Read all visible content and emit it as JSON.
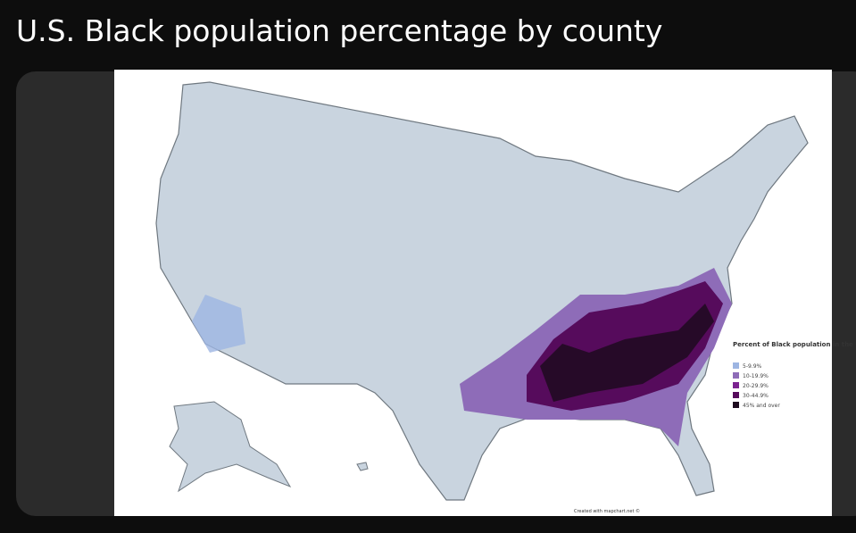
{
  "header": {
    "title": "U.S. Black population percentage by county"
  },
  "map": {
    "legend": {
      "title": "Percent of Black population in the USA by county",
      "items": [
        {
          "label": "5-9.9%",
          "color": "#9db5e2"
        },
        {
          "label": "10-19.9%",
          "color": "#8e6cb8"
        },
        {
          "label": "20-29.9%",
          "color": "#7b2390"
        },
        {
          "label": "30-44.9%",
          "color": "#560b5c"
        },
        {
          "label": "45% and over",
          "color": "#1d0a1e"
        }
      ]
    },
    "credit": "Created with mapchart.net ©"
  }
}
